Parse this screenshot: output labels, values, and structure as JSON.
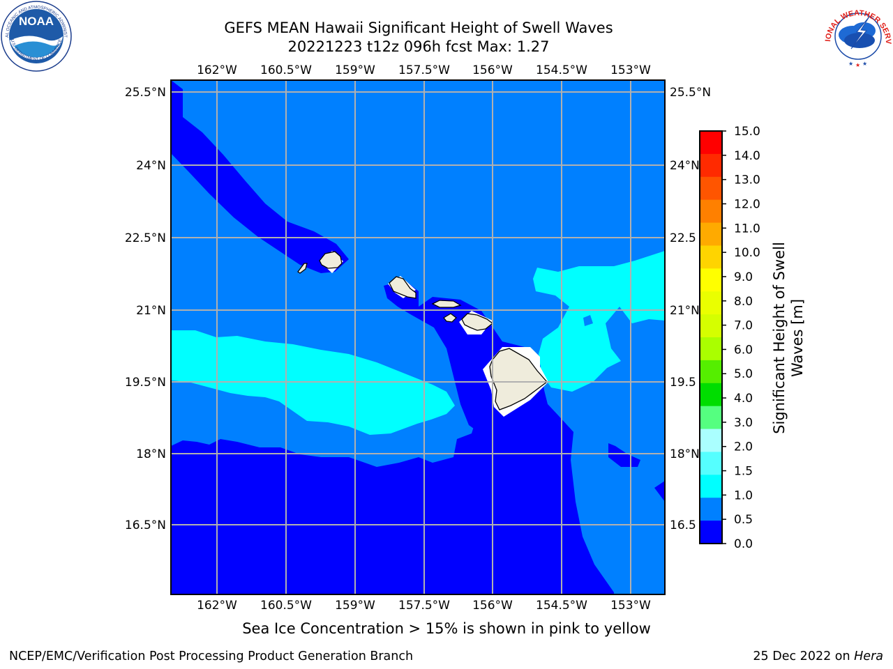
{
  "title": {
    "line1": "GEFS MEAN Hawaii Significant Height of Swell Waves",
    "line2": "20221223 t12z 096h fcst   Max: 1.27"
  },
  "map": {
    "lon_ticks": [
      "162°W",
      "160.5°W",
      "159°W",
      "157.5°W",
      "156°W",
      "154.5°W",
      "153°W"
    ],
    "lat_ticks": [
      "25.5°N",
      "24°N",
      "22.5°N",
      "21°N",
      "19.5°N",
      "18°N",
      "16.5°N"
    ],
    "right_lat_ticks": [
      "25.5°N",
      "24°N",
      "22.5",
      "21°N",
      "19.5",
      "18°N",
      "16.5"
    ],
    "colors": {
      "ocean_low": "#0000ff",
      "ocean_mid": "#0080ff",
      "ocean_high": "#00ffff",
      "land": "#efecdc",
      "grid": "#b0b0b0"
    }
  },
  "colorbar": {
    "label_line1": "Significant Height of Swell",
    "label_line2": "Waves [m]",
    "ticks": [
      "15.0",
      "14.0",
      "13.0",
      "12.0",
      "11.0",
      "10.0",
      "9.0",
      "8.0",
      "7.0",
      "6.0",
      "5.0",
      "4.0",
      "3.0",
      "2.0",
      "1.5",
      "1.0",
      "0.5",
      "0.0"
    ],
    "colors": [
      "#ff0000",
      "#ff2a00",
      "#ff5500",
      "#ff8000",
      "#ffaa00",
      "#ffd400",
      "#ffff00",
      "#eaff00",
      "#d5ff00",
      "#aaff00",
      "#55ee00",
      "#00dd00",
      "#55ff80",
      "#aaffff",
      "#55ffff",
      "#00ffff",
      "#0080ff",
      "#0000ff"
    ]
  },
  "logos": {
    "noaa_text": "NOAA",
    "noaa_ring": "NATIONAL OCEANIC AND ATMOSPHERIC ADMINISTRATION",
    "noaa_ring_bottom": "U.S. DEPARTMENT OF COMMERCE",
    "nws_ring": "NATIONAL WEATHER SERVICE"
  },
  "footer": {
    "sea_ice": "Sea Ice Concentration > 15% is shown in pink to yellow",
    "credit": "NCEP/EMC/Verification Post Processing Product Generation Branch",
    "date_prefix": "25 Dec 2022 on ",
    "date_host": "Hera"
  }
}
